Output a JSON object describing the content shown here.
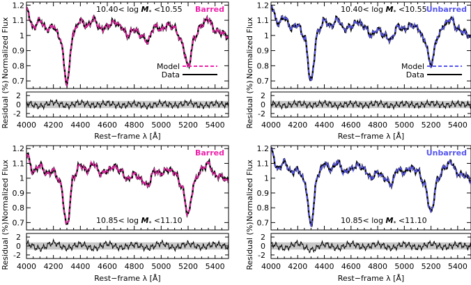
{
  "figure": {
    "colors": {
      "barred": "#ee22aa",
      "unbarred": "#5555ee",
      "data": "#000000",
      "residual_band": "#c8c8c8"
    },
    "xlabel": "Rest−frame λ [Å]",
    "ylabel": "Normalized Flux",
    "residual_ylabel": "Residual (%)",
    "legend": {
      "model": "Model",
      "data": "Data"
    },
    "panels": [
      {
        "sample": "Barred",
        "mass_range": "10.40< log M* <10.55",
        "mass_prefix": "10.40< log ",
        "mass_suffix": " <10.55",
        "variant": "barred",
        "show_legend": true,
        "annot_pos": "top"
      },
      {
        "sample": "Unbarred",
        "mass_range": "10.40< log M* <10.55",
        "mass_prefix": "10.40< log ",
        "mass_suffix": " <10.55",
        "variant": "unbarred",
        "show_legend": true,
        "annot_pos": "top"
      },
      {
        "sample": "Barred",
        "mass_range": "10.85< log M* <11.10",
        "mass_prefix": "10.85< log ",
        "mass_suffix": " <11.10",
        "variant": "barred",
        "show_legend": false,
        "annot_pos": "bottom"
      },
      {
        "sample": "Unbarred",
        "mass_range": "10.85< log M* <11.10",
        "mass_prefix": "10.85< log ",
        "mass_suffix": " <11.10",
        "variant": "unbarred",
        "show_legend": false,
        "annot_pos": "bottom"
      }
    ]
  },
  "chart_data": [
    {
      "type": "line",
      "title": "Barred 10.40< log M* <10.55",
      "xlabel": "Rest−frame λ [Å]",
      "ylabel": "Normalized Flux",
      "xlim": [
        4000,
        5500
      ],
      "ylim": [
        0.65,
        1.22
      ],
      "xticks": [
        4000,
        4200,
        4400,
        4600,
        4800,
        5000,
        5200,
        5400
      ],
      "yticks": [
        0.7,
        0.8,
        0.9,
        1.0,
        1.1,
        1.2
      ],
      "residual_ylim": [
        -2.8,
        2.8
      ],
      "residual_yticks": [
        -2,
        0,
        2
      ],
      "series": [
        {
          "name": "Data",
          "x": [
            4000,
            4050,
            4100,
            4150,
            4200,
            4250,
            4300,
            4350,
            4400,
            4450,
            4500,
            4550,
            4600,
            4650,
            4700,
            4750,
            4800,
            4850,
            4900,
            4950,
            5000,
            5050,
            5100,
            5150,
            5200,
            5250,
            5300,
            5350,
            5400,
            5450,
            5500
          ],
          "y": [
            1.18,
            1.05,
            1.1,
            1.04,
            1.06,
            0.98,
            0.69,
            1.02,
            1.1,
            1.06,
            1.11,
            1.04,
            1.06,
            1.09,
            1.06,
            1.0,
            1.04,
            1.0,
            0.96,
            1.06,
            1.04,
            1.07,
            1.05,
            0.96,
            0.8,
            0.99,
            1.07,
            1.11,
            1.03,
            1.02,
            0.99
          ]
        },
        {
          "name": "Model",
          "x": [
            4000,
            4050,
            4100,
            4150,
            4200,
            4250,
            4300,
            4350,
            4400,
            4450,
            4500,
            4550,
            4600,
            4650,
            4700,
            4750,
            4800,
            4850,
            4900,
            4950,
            5000,
            5050,
            5100,
            5150,
            5200,
            5250,
            5300,
            5350,
            5400,
            5450,
            5500
          ],
          "y": [
            1.18,
            1.05,
            1.1,
            1.04,
            1.06,
            0.98,
            0.69,
            1.02,
            1.1,
            1.06,
            1.11,
            1.04,
            1.06,
            1.09,
            1.06,
            1.0,
            1.04,
            1.0,
            0.96,
            1.06,
            1.04,
            1.07,
            1.05,
            0.96,
            0.8,
            0.99,
            1.07,
            1.11,
            1.03,
            1.02,
            0.99
          ]
        }
      ],
      "residual": {
        "name": "Residual",
        "x": [
          4000,
          4100,
          4200,
          4300,
          4400,
          4500,
          4600,
          4700,
          4800,
          4900,
          5000,
          5100,
          5200,
          5300,
          5400,
          5500
        ],
        "y": [
          0.3,
          -0.4,
          0.5,
          -0.3,
          0.4,
          -0.2,
          0.3,
          -0.3,
          0.2,
          -0.4,
          0.3,
          -0.2,
          0.4,
          -0.3,
          0.2,
          -0.1
        ]
      }
    },
    {
      "type": "line",
      "title": "Unbarred 10.40< log M* <10.55",
      "xlabel": "Rest−frame λ [Å]",
      "ylabel": "Normalized Flux",
      "xlim": [
        4000,
        5500
      ],
      "ylim": [
        0.65,
        1.22
      ],
      "xticks": [
        4000,
        4200,
        4400,
        4600,
        4800,
        5000,
        5200,
        5400
      ],
      "yticks": [
        0.7,
        0.8,
        0.9,
        1.0,
        1.1,
        1.2
      ],
      "residual_ylim": [
        -2.8,
        2.8
      ],
      "residual_yticks": [
        -2,
        0,
        2
      ],
      "series": [
        {
          "name": "Data",
          "x": [
            4000,
            4050,
            4100,
            4150,
            4200,
            4250,
            4300,
            4350,
            4400,
            4450,
            4500,
            4550,
            4600,
            4650,
            4700,
            4750,
            4800,
            4850,
            4900,
            4950,
            5000,
            5050,
            5100,
            5150,
            5200,
            5250,
            5300,
            5350,
            5400,
            5450,
            5500
          ],
          "y": [
            1.2,
            1.08,
            1.12,
            1.05,
            1.07,
            0.99,
            0.7,
            1.02,
            1.1,
            1.06,
            1.11,
            1.04,
            1.06,
            1.09,
            1.06,
            1.0,
            1.04,
            1.0,
            0.97,
            1.06,
            1.04,
            1.07,
            1.05,
            0.97,
            0.81,
            0.99,
            1.07,
            1.11,
            1.04,
            1.02,
            0.99
          ]
        },
        {
          "name": "Model",
          "x": [
            4000,
            4050,
            4100,
            4150,
            4200,
            4250,
            4300,
            4350,
            4400,
            4450,
            4500,
            4550,
            4600,
            4650,
            4700,
            4750,
            4800,
            4850,
            4900,
            4950,
            5000,
            5050,
            5100,
            5150,
            5200,
            5250,
            5300,
            5350,
            5400,
            5450,
            5500
          ],
          "y": [
            1.2,
            1.08,
            1.12,
            1.05,
            1.07,
            0.99,
            0.7,
            1.02,
            1.1,
            1.06,
            1.11,
            1.04,
            1.06,
            1.09,
            1.06,
            1.0,
            1.04,
            1.0,
            0.97,
            1.06,
            1.04,
            1.07,
            1.05,
            0.97,
            0.81,
            0.99,
            1.07,
            1.11,
            1.04,
            1.02,
            0.99
          ]
        }
      ],
      "residual": {
        "name": "Residual",
        "x": [
          4000,
          4100,
          4200,
          4300,
          4400,
          4500,
          4600,
          4700,
          4800,
          4900,
          5000,
          5100,
          5200,
          5300,
          5400,
          5500
        ],
        "y": [
          0.2,
          -0.3,
          0.3,
          -0.2,
          0.3,
          -0.3,
          0.2,
          -0.2,
          0.3,
          -0.3,
          0.2,
          -0.2,
          0.3,
          -0.2,
          0.2,
          -0.1
        ]
      }
    },
    {
      "type": "line",
      "title": "Barred 10.85< log M* <11.10",
      "xlabel": "Rest−frame λ [Å]",
      "ylabel": "Normalized Flux",
      "xlim": [
        4000,
        5500
      ],
      "ylim": [
        0.65,
        1.22
      ],
      "xticks": [
        4000,
        4200,
        4400,
        4600,
        4800,
        5000,
        5200,
        5400
      ],
      "yticks": [
        0.7,
        0.8,
        0.9,
        1.0,
        1.1,
        1.2
      ],
      "residual_ylim": [
        -2.8,
        2.8
      ],
      "residual_yticks": [
        -2,
        0,
        2
      ],
      "series": [
        {
          "name": "Data",
          "x": [
            4000,
            4050,
            4100,
            4150,
            4200,
            4250,
            4300,
            4350,
            4400,
            4450,
            4500,
            4550,
            4600,
            4650,
            4700,
            4750,
            4800,
            4850,
            4900,
            4950,
            5000,
            5050,
            5100,
            5150,
            5200,
            5250,
            5300,
            5350,
            5400,
            5450,
            5500
          ],
          "y": [
            1.17,
            1.04,
            1.09,
            1.03,
            1.05,
            0.97,
            0.68,
            1.01,
            1.09,
            1.05,
            1.1,
            1.03,
            1.05,
            1.08,
            1.05,
            0.99,
            1.03,
            0.99,
            0.95,
            1.05,
            1.03,
            1.06,
            1.04,
            0.95,
            0.76,
            0.98,
            1.06,
            1.1,
            1.02,
            1.01,
            0.98
          ]
        },
        {
          "name": "Model",
          "x": [
            4000,
            4050,
            4100,
            4150,
            4200,
            4250,
            4300,
            4350,
            4400,
            4450,
            4500,
            4550,
            4600,
            4650,
            4700,
            4750,
            4800,
            4850,
            4900,
            4950,
            5000,
            5050,
            5100,
            5150,
            5200,
            5250,
            5300,
            5350,
            5400,
            5450,
            5500
          ],
          "y": [
            1.17,
            1.04,
            1.09,
            1.03,
            1.05,
            0.97,
            0.68,
            1.01,
            1.09,
            1.05,
            1.1,
            1.03,
            1.05,
            1.08,
            1.05,
            0.99,
            1.03,
            0.99,
            0.95,
            1.05,
            1.03,
            1.06,
            1.04,
            0.95,
            0.76,
            0.98,
            1.06,
            1.1,
            1.02,
            1.01,
            0.98
          ]
        }
      ],
      "residual": {
        "name": "Residual",
        "x": [
          4000,
          4100,
          4200,
          4300,
          4400,
          4500,
          4600,
          4700,
          4800,
          4900,
          5000,
          5100,
          5200,
          5300,
          5400,
          5500
        ],
        "y": [
          0.5,
          -0.6,
          0.7,
          -0.5,
          0.4,
          -0.6,
          0.5,
          -0.4,
          0.3,
          -0.5,
          0.6,
          -0.4,
          0.5,
          -0.3,
          0.4,
          -0.2
        ]
      }
    },
    {
      "type": "line",
      "title": "Unbarred 10.85< log M* <11.10",
      "xlabel": "Rest−frame λ [Å]",
      "ylabel": "Normalized Flux",
      "xlim": [
        4000,
        5500
      ],
      "ylim": [
        0.65,
        1.22
      ],
      "xticks": [
        4000,
        4200,
        4400,
        4600,
        4800,
        5000,
        5200,
        5400
      ],
      "yticks": [
        0.7,
        0.8,
        0.9,
        1.0,
        1.1,
        1.2
      ],
      "residual_ylim": [
        -2.8,
        2.8
      ],
      "residual_yticks": [
        -2,
        0,
        2
      ],
      "series": [
        {
          "name": "Data",
          "x": [
            4000,
            4050,
            4100,
            4150,
            4200,
            4250,
            4300,
            4350,
            4400,
            4450,
            4500,
            4550,
            4600,
            4650,
            4700,
            4750,
            4800,
            4850,
            4900,
            4950,
            5000,
            5050,
            5100,
            5150,
            5200,
            5250,
            5300,
            5350,
            5400,
            5450,
            5500
          ],
          "y": [
            1.19,
            1.06,
            1.11,
            1.04,
            1.06,
            0.98,
            0.69,
            1.02,
            1.1,
            1.06,
            1.11,
            1.04,
            1.06,
            1.09,
            1.06,
            1.0,
            1.04,
            1.0,
            0.96,
            1.06,
            1.04,
            1.07,
            1.05,
            0.96,
            0.77,
            0.99,
            1.07,
            1.11,
            1.03,
            1.02,
            0.99
          ]
        },
        {
          "name": "Model",
          "x": [
            4000,
            4050,
            4100,
            4150,
            4200,
            4250,
            4300,
            4350,
            4400,
            4450,
            4500,
            4550,
            4600,
            4650,
            4700,
            4750,
            4800,
            4850,
            4900,
            4950,
            5000,
            5050,
            5100,
            5150,
            5200,
            5250,
            5300,
            5350,
            5400,
            5450,
            5500
          ],
          "y": [
            1.19,
            1.06,
            1.11,
            1.04,
            1.06,
            0.98,
            0.69,
            1.02,
            1.1,
            1.06,
            1.11,
            1.04,
            1.06,
            1.09,
            1.06,
            1.0,
            1.04,
            1.0,
            0.96,
            1.06,
            1.04,
            1.07,
            1.05,
            0.96,
            0.77,
            0.99,
            1.07,
            1.11,
            1.03,
            1.02,
            0.99
          ]
        }
      ],
      "residual": {
        "name": "Residual",
        "x": [
          4000,
          4100,
          4200,
          4300,
          4400,
          4500,
          4600,
          4700,
          4800,
          4900,
          5000,
          5100,
          5200,
          5300,
          5400,
          5500
        ],
        "y": [
          0.4,
          -0.5,
          0.6,
          -0.9,
          0.4,
          -0.5,
          0.5,
          -0.3,
          0.4,
          -0.5,
          0.4,
          -0.4,
          0.5,
          -0.3,
          0.3,
          -0.2
        ]
      }
    }
  ]
}
